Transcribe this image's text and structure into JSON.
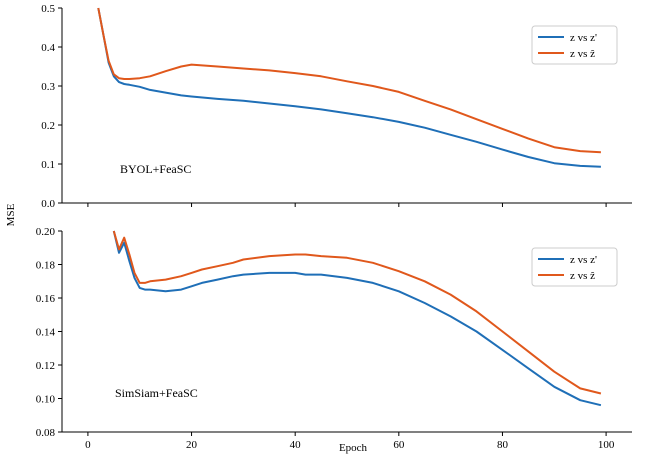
{
  "colors": {
    "series1": "#1f6fb7",
    "series2": "#e0581c"
  },
  "shared": {
    "ylabel": "MSE",
    "xlabel": "Epoch"
  },
  "chart_data": [
    {
      "type": "line",
      "annotation": "BYOL+FeaSC",
      "xlim": [
        -5,
        105
      ],
      "ylim": [
        0.0,
        0.5
      ],
      "xticks": [
        0,
        20,
        40,
        60,
        80,
        100
      ],
      "yticks": [
        0.0,
        0.1,
        0.2,
        0.3,
        0.4,
        0.5
      ],
      "ytick_labels": [
        "0.0",
        "0.1",
        "0.2",
        "0.3",
        "0.4",
        "0.5"
      ],
      "legend": "top-right",
      "grid": false,
      "series": [
        {
          "name": "z vs z'",
          "x": [
            2,
            3,
            4,
            5,
            6,
            7,
            8,
            10,
            12,
            15,
            18,
            20,
            25,
            30,
            35,
            40,
            45,
            50,
            55,
            60,
            65,
            70,
            75,
            80,
            85,
            90,
            95,
            99
          ],
          "y": [
            0.5,
            0.43,
            0.36,
            0.325,
            0.31,
            0.305,
            0.303,
            0.298,
            0.29,
            0.283,
            0.276,
            0.273,
            0.267,
            0.262,
            0.255,
            0.248,
            0.24,
            0.23,
            0.22,
            0.208,
            0.193,
            0.175,
            0.157,
            0.137,
            0.118,
            0.102,
            0.095,
            0.093
          ]
        },
        {
          "name": "z vs ẑ",
          "x": [
            2,
            3,
            4,
            5,
            6,
            7,
            8,
            10,
            12,
            15,
            18,
            20,
            25,
            30,
            35,
            40,
            45,
            50,
            55,
            60,
            65,
            70,
            75,
            80,
            85,
            90,
            95,
            99
          ],
          "y": [
            0.5,
            0.43,
            0.365,
            0.33,
            0.32,
            0.318,
            0.318,
            0.32,
            0.325,
            0.338,
            0.35,
            0.355,
            0.35,
            0.345,
            0.34,
            0.333,
            0.325,
            0.312,
            0.3,
            0.285,
            0.262,
            0.24,
            0.215,
            0.19,
            0.165,
            0.143,
            0.133,
            0.13
          ]
        }
      ]
    },
    {
      "type": "line",
      "annotation": "SimSiam+FeaSC",
      "xlim": [
        -5,
        105
      ],
      "ylim": [
        0.08,
        0.2
      ],
      "xticks": [
        0,
        20,
        40,
        60,
        80,
        100
      ],
      "xtick_labels": [
        "0",
        "20",
        "40",
        "60",
        "80",
        "100"
      ],
      "yticks": [
        0.08,
        0.1,
        0.12,
        0.14,
        0.16,
        0.18,
        0.2
      ],
      "ytick_labels": [
        "0.08",
        "0.10",
        "0.12",
        "0.14",
        "0.16",
        "0.18",
        "0.20"
      ],
      "legend": "top-right",
      "grid": false,
      "series": [
        {
          "name": "z vs z'",
          "x": [
            5,
            6,
            7,
            8,
            9,
            10,
            11,
            12,
            15,
            18,
            20,
            22,
            25,
            28,
            30,
            35,
            40,
            42,
            45,
            50,
            55,
            60,
            65,
            70,
            75,
            80,
            85,
            90,
            95,
            99
          ],
          "y": [
            0.2,
            0.187,
            0.193,
            0.182,
            0.172,
            0.166,
            0.165,
            0.165,
            0.164,
            0.165,
            0.167,
            0.169,
            0.171,
            0.173,
            0.174,
            0.175,
            0.175,
            0.174,
            0.174,
            0.172,
            0.169,
            0.164,
            0.157,
            0.149,
            0.14,
            0.129,
            0.118,
            0.107,
            0.099,
            0.096
          ]
        },
        {
          "name": "z vs ẑ",
          "x": [
            5,
            6,
            7,
            8,
            9,
            10,
            11,
            12,
            15,
            18,
            20,
            22,
            25,
            28,
            30,
            35,
            40,
            42,
            45,
            50,
            55,
            60,
            65,
            70,
            75,
            80,
            85,
            90,
            95,
            99
          ],
          "y": [
            0.2,
            0.189,
            0.196,
            0.186,
            0.175,
            0.169,
            0.169,
            0.17,
            0.171,
            0.173,
            0.175,
            0.177,
            0.179,
            0.181,
            0.183,
            0.185,
            0.186,
            0.186,
            0.185,
            0.184,
            0.181,
            0.176,
            0.17,
            0.162,
            0.152,
            0.14,
            0.128,
            0.116,
            0.106,
            0.103
          ]
        }
      ]
    }
  ]
}
